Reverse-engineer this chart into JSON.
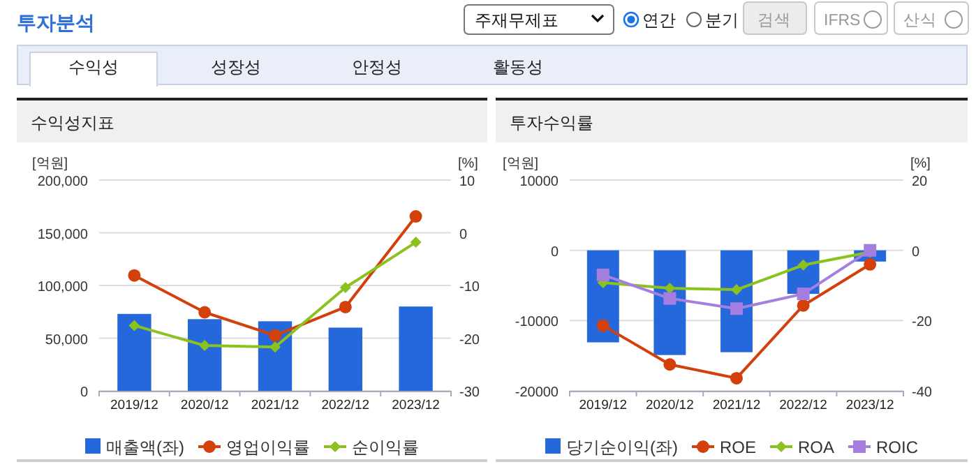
{
  "chart_data": [
    {
      "type": "other",
      "title": "투자분석",
      "annotations": [
        "주재무제표",
        "연간",
        "분기",
        "검색",
        "IFRS",
        "산식",
        "수익성",
        "성장성",
        "안정성",
        "활동성"
      ]
    },
    {
      "type": "bar",
      "title": "수익성지표",
      "ylabel": "[억원]",
      "y2label": "[%]",
      "categories": [
        "2019/12",
        "2020/12",
        "2021/12",
        "2022/12",
        "2023/12"
      ],
      "ylim": [
        0,
        200000
      ],
      "yticks": [
        0,
        {
          "value": 50000,
          "label": "50,000"
        },
        {
          "value": 100000,
          "label": "100,000"
        },
        {
          "value": 150000,
          "label": "150,000"
        },
        {
          "value": 200000,
          "label": "200,000"
        }
      ],
      "y2lim": [
        -30,
        10
      ],
      "y2ticks": [
        -30,
        -20,
        -10,
        0,
        10
      ],
      "grid": "y",
      "legend": "bottom",
      "series": [
        {
          "name": "매출액(좌)",
          "type": "bar",
          "color": "#2468dc",
          "values": [
            73000,
            68000,
            66000,
            60000,
            80000
          ]
        },
        {
          "name": "영업이익률",
          "type": "line",
          "axis": "y2",
          "marker": "circle",
          "color": "#d4400c",
          "values": [
            -8.1,
            -15.1,
            -19.5,
            -14.1,
            3.1
          ]
        },
        {
          "name": "순이익률",
          "type": "line",
          "axis": "y2",
          "marker": "diamond",
          "color": "#8cc21e",
          "values": [
            -17.6,
            -21.4,
            -21.7,
            -10.4,
            -1.8
          ]
        }
      ]
    },
    {
      "type": "bar",
      "title": "투자수익률",
      "ylabel": "[억원]",
      "y2label": "[%]",
      "categories": [
        "2019/12",
        "2020/12",
        "2021/12",
        "2022/12",
        "2023/12"
      ],
      "ylim": [
        -20000,
        10000
      ],
      "yticks": [
        -20000,
        -10000,
        0,
        10000
      ],
      "y2lim": [
        -40,
        20
      ],
      "y2ticks": [
        -40,
        -20,
        0,
        20
      ],
      "grid": "y",
      "legend": "bottom",
      "series": [
        {
          "name": "당기순이익(좌)",
          "type": "bar",
          "color": "#2468dc",
          "values": [
            -13100,
            -14900,
            -14500,
            -6200,
            -1600
          ]
        },
        {
          "name": "ROE",
          "type": "line",
          "axis": "y2",
          "marker": "circle",
          "color": "#d4400c",
          "values": [
            -21.4,
            -32.5,
            -36.4,
            -15.7,
            -4.0
          ]
        },
        {
          "name": "ROA",
          "type": "line",
          "axis": "y2",
          "marker": "diamond",
          "color": "#8cc21e",
          "values": [
            -9.2,
            -10.8,
            -11.2,
            -4.2,
            -0.5
          ]
        },
        {
          "name": "ROIC",
          "type": "line",
          "axis": "y2",
          "marker": "square",
          "color": "#a57fe0",
          "values": [
            -7.0,
            -13.7,
            -16.6,
            -12.4,
            0.0
          ]
        }
      ]
    }
  ]
}
